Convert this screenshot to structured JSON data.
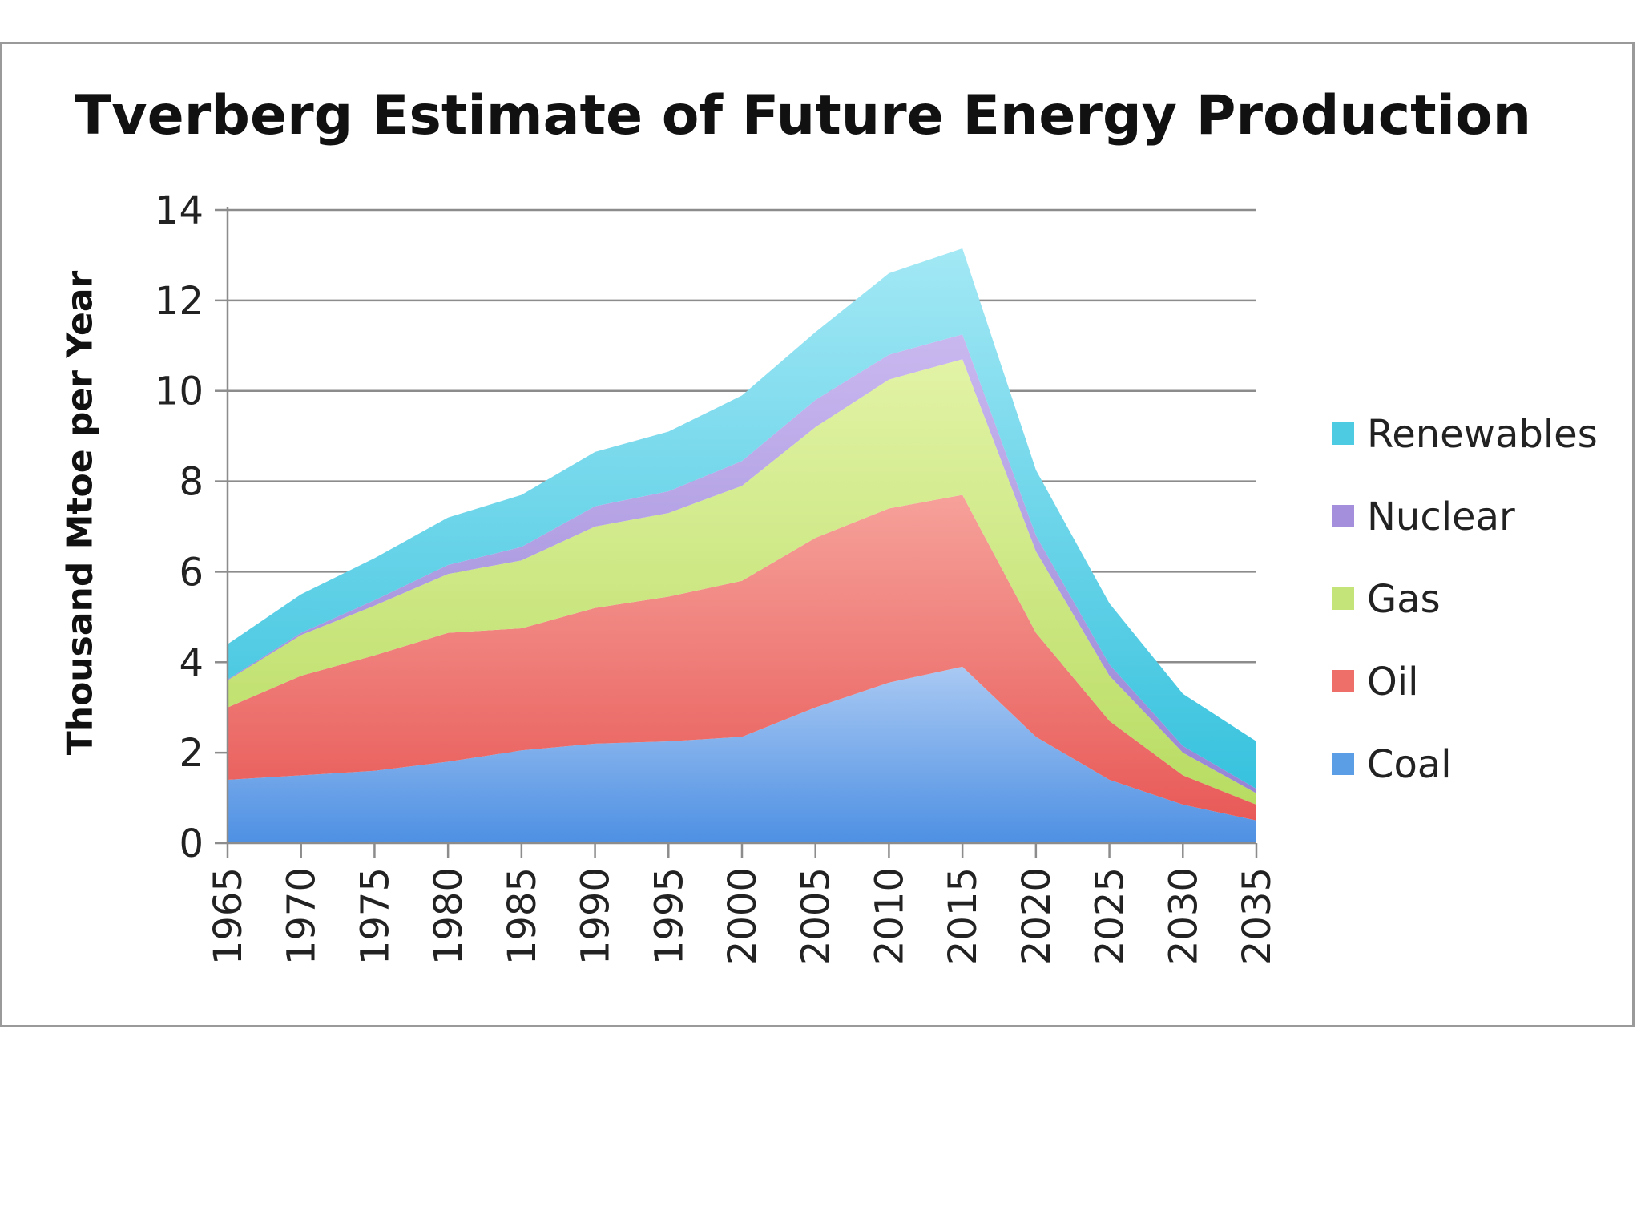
{
  "chart_data": {
    "type": "area",
    "stacked": true,
    "title": "Tverberg Estimate of Future Energy Production",
    "xlabel": "",
    "ylabel": "Thousand Mtoe per Year",
    "ylim": [
      0,
      14
    ],
    "yticks": [
      0,
      2,
      4,
      6,
      8,
      10,
      12,
      14
    ],
    "grid": true,
    "legend_position": "right",
    "x": [
      "1965",
      "1970",
      "1975",
      "1980",
      "1985",
      "1990",
      "1995",
      "2000",
      "2005",
      "2010",
      "2015",
      "2020",
      "2025",
      "2030",
      "2035"
    ],
    "series": [
      {
        "name": "Coal",
        "color": "#5b9ee6",
        "values": [
          1.4,
          1.5,
          1.6,
          1.8,
          2.05,
          2.2,
          2.25,
          2.35,
          3.0,
          3.55,
          3.9,
          2.35,
          1.4,
          0.85,
          0.5
        ]
      },
      {
        "name": "Oil",
        "color": "#ee6f6a",
        "values": [
          1.6,
          2.2,
          2.55,
          2.85,
          2.7,
          3.0,
          3.2,
          3.45,
          3.75,
          3.85,
          3.8,
          2.3,
          1.3,
          0.65,
          0.35
        ]
      },
      {
        "name": "Gas",
        "color": "#c4e47a",
        "values": [
          0.6,
          0.9,
          1.1,
          1.3,
          1.5,
          1.8,
          1.85,
          2.1,
          2.45,
          2.85,
          3.0,
          1.8,
          1.0,
          0.5,
          0.25
        ]
      },
      {
        "name": "Nuclear",
        "color": "#a48fdc",
        "values": [
          0.02,
          0.05,
          0.12,
          0.2,
          0.3,
          0.45,
          0.48,
          0.55,
          0.6,
          0.55,
          0.55,
          0.35,
          0.25,
          0.15,
          0.1
        ]
      },
      {
        "name": "Renewables",
        "color": "#4dcbe3",
        "values": [
          0.78,
          0.85,
          0.93,
          1.05,
          1.15,
          1.2,
          1.32,
          1.45,
          1.5,
          1.8,
          1.9,
          1.45,
          1.35,
          1.15,
          1.05
        ]
      }
    ]
  }
}
